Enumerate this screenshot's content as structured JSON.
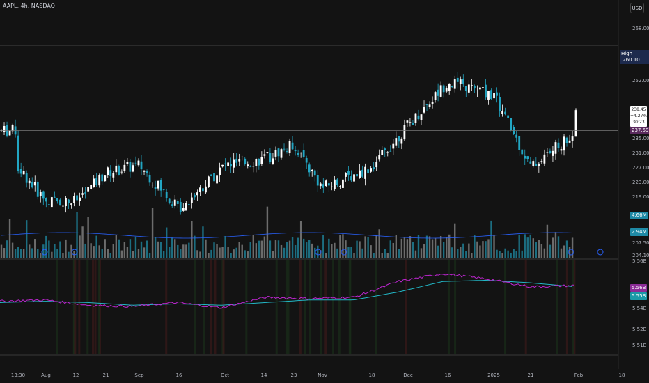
{
  "header": {
    "symbol_line": "AAPL, 4h, NASDAQ"
  },
  "currency_button": "USD",
  "price_axis": {
    "labels": [
      "268.00",
      "252.00",
      "235.00",
      "231.00",
      "227.00",
      "223.00",
      "219.00",
      "207.50",
      "204.10"
    ]
  },
  "indicator_axis": {
    "labels": [
      "5.56B",
      "5.54B",
      "5.52B",
      "5.51B"
    ]
  },
  "time_axis": {
    "labels": [
      "13:30",
      "Aug",
      "12",
      "21",
      "Sep",
      "16",
      "Oct",
      "14",
      "23",
      "Nov",
      "18",
      "Dec",
      "16",
      "2025",
      "21",
      "Feb",
      "18"
    ]
  },
  "price_tags": {
    "high_label": "High",
    "high_value": "260.10",
    "last_price": "238.45",
    "change_pct": "+4.27%",
    "countdown": "30:23",
    "current_price": "237.59",
    "volume_tag_1": "4.66M",
    "volume_tag_2": "2.94M",
    "indicator_tag_1": "5.56B",
    "indicator_tag_2": "5.55B"
  },
  "colors": {
    "background": "#131313",
    "up": "#ffffff",
    "down": "#22a6c3",
    "volume_ma": "#2962ff",
    "indicator_main": "#c026d3",
    "indicator_signal": "#22b8c7",
    "current_price_tag": "#5b2a5e",
    "high_tag": "#1d2a4d"
  },
  "chart_data": [
    {
      "type": "candlestick",
      "symbol": "AAPL",
      "interval": "4h",
      "exchange": "NASDAQ",
      "ylim": [
        204.1,
        268.0
      ],
      "high_line": 260.1,
      "current_price": 237.59,
      "anchors": [
        {
          "t": "13:30",
          "close": 228.0
        },
        {
          "t": "Aug",
          "close": 219.0
        },
        {
          "t": "12",
          "close": 219.0
        },
        {
          "t": "21",
          "close": 226.5
        },
        {
          "t": "Sep",
          "close": 228.5
        },
        {
          "t": "16",
          "close": 217.0
        },
        {
          "t": "Oct",
          "close": 228.5
        },
        {
          "t": "14",
          "close": 230.0
        },
        {
          "t": "23",
          "close": 234.0
        },
        {
          "t": "Nov",
          "close": 222.5
        },
        {
          "t": "18",
          "close": 228.0
        },
        {
          "t": "Dec",
          "close": 239.0
        },
        {
          "t": "16",
          "close": 250.5
        },
        {
          "t": "2025",
          "close": 247.0
        },
        {
          "t": "21",
          "close": 228.0
        },
        {
          "t": "Feb",
          "close": 237.6
        }
      ]
    },
    {
      "type": "line",
      "series": [
        {
          "values": [
            5.545,
            5.546,
            5.542,
            5.541,
            5.544,
            5.54,
            5.548,
            5.547,
            5.548,
            5.56,
            5.566,
            5.562,
            5.556,
            5.557
          ]
        },
        {
          "values": [
            5.544,
            5.545,
            5.544,
            5.542,
            5.543,
            5.542,
            5.544,
            5.546,
            5.546,
            5.552,
            5.56,
            5.561,
            5.559,
            5.556
          ]
        }
      ],
      "ylim": [
        5.505,
        5.575
      ]
    }
  ]
}
